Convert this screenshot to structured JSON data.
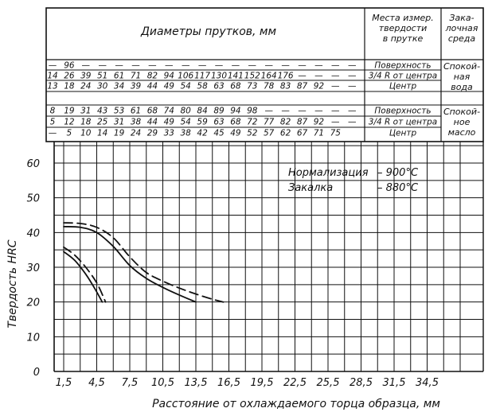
{
  "chart_data": {
    "type": "line",
    "table": {
      "header_diameters": "Диаметры прутков, мм",
      "header_location_lines": [
        "Места измер.",
        "твердости",
        "в прутке"
      ],
      "header_medium_lines": [
        "Зака-",
        "лочная",
        "среда"
      ],
      "groups": [
        {
          "medium_lines": [
            "Спокой-",
            "ная",
            "вода"
          ],
          "rows": [
            {
              "location": "Поверхность",
              "values": [
                "—",
                "96",
                "—",
                "—",
                "—",
                "—",
                "—",
                "—",
                "—",
                "—",
                "—",
                "—",
                "—",
                "—",
                "—",
                "—",
                "—",
                "—",
                "—"
              ]
            },
            {
              "location": "3/4 R от центра",
              "values": [
                "14",
                "26",
                "39",
                "51",
                "61",
                "71",
                "82",
                "94",
                "106",
                "117",
                "130",
                "141",
                "152",
                "164",
                "176",
                "—",
                "—",
                "—",
                "—"
              ]
            },
            {
              "location": "Центр",
              "values": [
                "13",
                "18",
                "24",
                "30",
                "34",
                "39",
                "44",
                "49",
                "54",
                "58",
                "63",
                "68",
                "73",
                "78",
                "83",
                "87",
                "92",
                "—",
                "—"
              ]
            }
          ]
        },
        {
          "medium_lines": [
            "Спокой-",
            "ное",
            "масло"
          ],
          "rows": [
            {
              "location": "Поверхность",
              "values": [
                "8",
                "19",
                "31",
                "43",
                "53",
                "61",
                "68",
                "74",
                "80",
                "84",
                "89",
                "94",
                "98",
                "—",
                "—",
                "—",
                "—",
                "—",
                "—"
              ]
            },
            {
              "location": "3/4 R от центра",
              "values": [
                "5",
                "12",
                "18",
                "25",
                "31",
                "38",
                "44",
                "49",
                "54",
                "59",
                "63",
                "68",
                "72",
                "77",
                "82",
                "87",
                "92",
                "—",
                "—"
              ]
            },
            {
              "location": "Центр",
              "values": [
                "—",
                "5",
                "10",
                "14",
                "19",
                "24",
                "29",
                "33",
                "38",
                "42",
                "45",
                "49",
                "52",
                "57",
                "62",
                "67",
                "71",
                "75",
                ""
              ]
            }
          ]
        }
      ]
    },
    "annotation_lines": [
      {
        "label": "Нормализация",
        "value": "– 900°С"
      },
      {
        "label": "Закалка",
        "value": "– 880°С"
      }
    ],
    "xlabel": "Расстояние от охлаждаемого торца образца, мм",
    "ylabel": "Твердость HRC",
    "x_ticks": [
      "1,5",
      "4,5",
      "7,5",
      "10,5",
      "13,5",
      "16,5",
      "19,5",
      "22,5",
      "25,5",
      "28,5",
      "31,5",
      "34,5"
    ],
    "y_ticks": [
      0,
      10,
      20,
      30,
      40,
      50,
      60
    ],
    "xlim": [
      0,
      37.5
    ],
    "ylim": [
      0,
      65
    ],
    "grid": true,
    "series": [
      {
        "style": "dashed",
        "x": [
          1.5,
          3.0,
          4.5,
          6.0,
          7.5,
          9.0,
          10.5,
          12.0,
          13.5,
          15.0,
          16.0
        ],
        "y": [
          42.8,
          42.6,
          41.5,
          38.5,
          33.0,
          28.5,
          26.0,
          24.0,
          22.3,
          20.8,
          20.0
        ]
      },
      {
        "style": "solid",
        "x": [
          1.5,
          3.0,
          4.5,
          6.0,
          7.5,
          9.0,
          10.5,
          12.0,
          13.5
        ],
        "y": [
          41.7,
          41.5,
          40.0,
          36.0,
          30.5,
          26.8,
          24.2,
          22.0,
          20.0
        ]
      },
      {
        "style": "dashed",
        "x": [
          1.5,
          2.5,
          3.5,
          4.5,
          5.3
        ],
        "y": [
          35.8,
          33.5,
          30.0,
          25.5,
          20.0
        ]
      },
      {
        "style": "solid",
        "x": [
          1.5,
          2.5,
          3.5,
          4.3,
          5.0
        ],
        "y": [
          34.5,
          32.0,
          28.0,
          24.0,
          20.0
        ]
      }
    ]
  }
}
